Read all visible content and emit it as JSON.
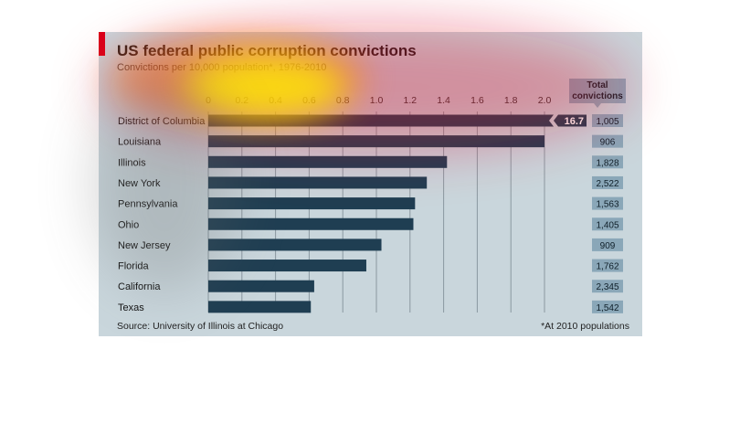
{
  "header": {
    "title": "US federal public corruption convictions",
    "subtitle": "Convictions per 10,000 population*, 1976-2010"
  },
  "footer": {
    "source": "Source: University of Illinois at Chicago",
    "footnote": "*At 2010 populations"
  },
  "totals_header": "Total convictions",
  "colors": {
    "panel": "#c9d6dc",
    "bar": "#1f3e52",
    "accent": "#d9001b",
    "total_box": "#8aa7b8"
  },
  "chart_data": {
    "type": "bar",
    "orientation": "horizontal",
    "title": "US federal public corruption convictions",
    "subtitle": "Convictions per 10,000 population*, 1976-2010",
    "categories": [
      "District of Columbia",
      "Louisiana",
      "Illinois",
      "New York",
      "Pennsylvania",
      "Ohio",
      "New Jersey",
      "Florida",
      "California",
      "Texas"
    ],
    "values": [
      16.7,
      2.0,
      1.42,
      1.3,
      1.23,
      1.22,
      1.03,
      0.94,
      0.63,
      0.61
    ],
    "data_labels": [
      "16.7",
      "",
      "",
      "",
      "",
      "",
      "",
      "",
      "",
      ""
    ],
    "broken_axis_categories": [
      "District of Columbia"
    ],
    "total_convictions": [
      "1,005",
      "906",
      "1,828",
      "2,522",
      "1,563",
      "1,405",
      "909",
      "1,762",
      "2,345",
      "1,542"
    ],
    "xlim": [
      0,
      2.0
    ],
    "xticks": [
      "0",
      "0.2",
      "0.4",
      "0.6",
      "0.8",
      "1.0",
      "1.2",
      "1.4",
      "1.6",
      "1.8",
      "2.0"
    ],
    "xlabel": "",
    "ylabel": "",
    "grid": true,
    "source": "Source: University of Illinois at Chicago",
    "footnote": "*At 2010 populations"
  }
}
